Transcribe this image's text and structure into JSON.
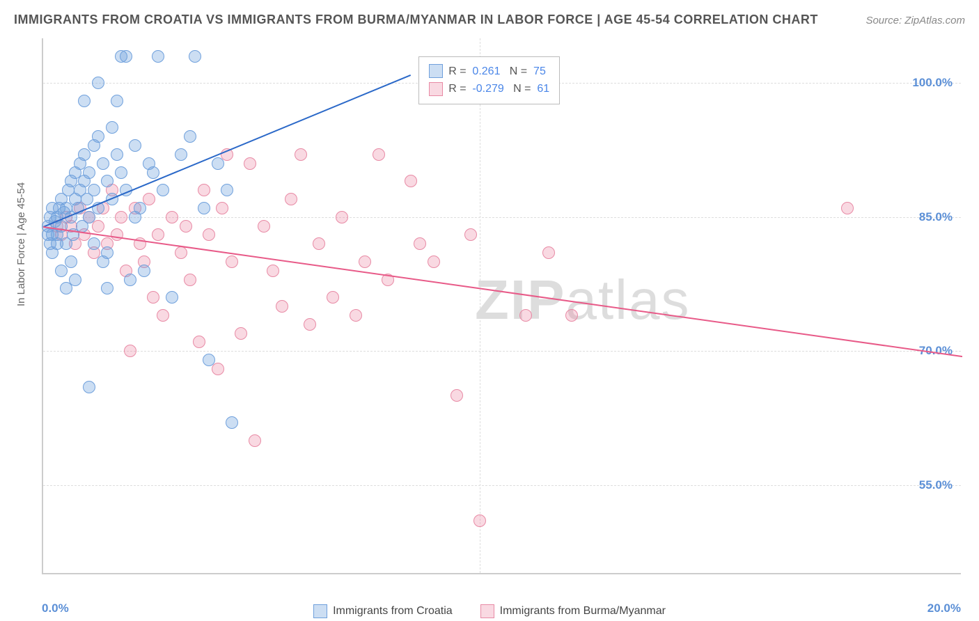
{
  "title": "IMMIGRANTS FROM CROATIA VS IMMIGRANTS FROM BURMA/MYANMAR IN LABOR FORCE | AGE 45-54 CORRELATION CHART",
  "source": "Source: ZipAtlas.com",
  "y_axis_label": "In Labor Force | Age 45-54",
  "watermark_bold": "ZIP",
  "watermark_rest": "atlas",
  "colors": {
    "series_a_fill": "rgba(110,160,220,0.35)",
    "series_a_stroke": "#6fa0dc",
    "series_a_line": "#2a68c8",
    "series_b_fill": "rgba(235,130,160,0.30)",
    "series_b_stroke": "#e88aa5",
    "series_b_line": "#e85a88",
    "tick_label": "#5b8fd6",
    "grid": "#dddddd",
    "axis": "#cccccc",
    "legend_text": "#555555",
    "value_blue": "#4a86e8"
  },
  "plot": {
    "xlim": [
      0,
      20
    ],
    "ylim": [
      45,
      105
    ],
    "y_ticks": [
      55,
      70,
      85,
      100
    ],
    "y_tick_labels": [
      "55.0%",
      "70.0%",
      "85.0%",
      "100.0%"
    ],
    "x_ticks": [
      0,
      20
    ],
    "x_tick_labels": [
      "0.0%",
      "20.0%"
    ],
    "marker_radius": 9,
    "line_width": 2
  },
  "correlation_box": {
    "rows": [
      {
        "swatch": "a",
        "r_label": "R =",
        "r_value": "0.261",
        "n_label": "N =",
        "n_value": "75"
      },
      {
        "swatch": "b",
        "r_label": "R =",
        "r_value": "-0.279",
        "n_label": "N =",
        "n_value": "61"
      }
    ]
  },
  "bottom_legend": [
    {
      "swatch": "a",
      "label": "Immigrants from Croatia"
    },
    {
      "swatch": "b",
      "label": "Immigrants from Burma/Myanmar"
    }
  ],
  "series_a_trend": {
    "x1": 0,
    "y1": 84,
    "x2": 8.0,
    "y2": 101
  },
  "series_b_trend": {
    "x1": 0,
    "y1": 84,
    "x2": 20,
    "y2": 69.5
  },
  "series_a_points": [
    [
      0.1,
      84
    ],
    [
      0.15,
      85
    ],
    [
      0.2,
      86
    ],
    [
      0.2,
      83
    ],
    [
      0.25,
      84.5
    ],
    [
      0.3,
      85
    ],
    [
      0.3,
      83
    ],
    [
      0.35,
      86
    ],
    [
      0.4,
      84
    ],
    [
      0.4,
      87
    ],
    [
      0.45,
      85.5
    ],
    [
      0.5,
      86
    ],
    [
      0.5,
      82
    ],
    [
      0.55,
      88
    ],
    [
      0.6,
      85
    ],
    [
      0.6,
      89
    ],
    [
      0.65,
      83
    ],
    [
      0.7,
      87
    ],
    [
      0.7,
      90
    ],
    [
      0.75,
      86
    ],
    [
      0.8,
      88
    ],
    [
      0.8,
      91
    ],
    [
      0.85,
      84
    ],
    [
      0.9,
      89
    ],
    [
      0.9,
      92
    ],
    [
      0.95,
      87
    ],
    [
      1.0,
      90
    ],
    [
      1.0,
      85
    ],
    [
      1.1,
      93
    ],
    [
      1.1,
      88
    ],
    [
      1.2,
      86
    ],
    [
      1.2,
      94
    ],
    [
      1.3,
      80
    ],
    [
      1.3,
      91
    ],
    [
      1.4,
      89
    ],
    [
      1.4,
      77
    ],
    [
      1.5,
      95
    ],
    [
      1.5,
      87
    ],
    [
      1.6,
      92
    ],
    [
      1.7,
      90
    ],
    [
      1.7,
      103
    ],
    [
      1.8,
      88
    ],
    [
      1.8,
      103
    ],
    [
      1.9,
      78
    ],
    [
      2.0,
      93
    ],
    [
      2.1,
      86
    ],
    [
      2.2,
      79
    ],
    [
      2.3,
      91
    ],
    [
      2.5,
      103
    ],
    [
      2.6,
      88
    ],
    [
      2.8,
      76
    ],
    [
      3.0,
      92
    ],
    [
      3.2,
      94
    ],
    [
      3.3,
      103
    ],
    [
      3.5,
      86
    ],
    [
      3.6,
      69
    ],
    [
      3.8,
      91
    ],
    [
      4.0,
      88
    ],
    [
      4.1,
      62
    ],
    [
      1.6,
      98
    ],
    [
      1.0,
      66
    ],
    [
      1.2,
      100
    ],
    [
      0.9,
      98
    ],
    [
      1.4,
      81
    ],
    [
      0.6,
      80
    ],
    [
      0.3,
      82
    ],
    [
      0.2,
      81
    ],
    [
      2.0,
      85
    ],
    [
      2.4,
      90
    ],
    [
      1.1,
      82
    ],
    [
      0.7,
      78
    ],
    [
      0.5,
      77
    ],
    [
      0.4,
      79
    ],
    [
      0.15,
      82
    ],
    [
      0.1,
      83
    ]
  ],
  "series_b_points": [
    [
      0.3,
      84
    ],
    [
      0.4,
      83
    ],
    [
      0.5,
      85
    ],
    [
      0.6,
      84
    ],
    [
      0.7,
      82
    ],
    [
      0.8,
      86
    ],
    [
      0.9,
      83
    ],
    [
      1.0,
      85
    ],
    [
      1.1,
      81
    ],
    [
      1.2,
      84
    ],
    [
      1.3,
      86
    ],
    [
      1.4,
      82
    ],
    [
      1.5,
      88
    ],
    [
      1.6,
      83
    ],
    [
      1.7,
      85
    ],
    [
      1.8,
      79
    ],
    [
      2.0,
      86
    ],
    [
      2.1,
      82
    ],
    [
      2.2,
      80
    ],
    [
      2.3,
      87
    ],
    [
      2.5,
      83
    ],
    [
      2.6,
      74
    ],
    [
      2.8,
      85
    ],
    [
      3.0,
      81
    ],
    [
      3.2,
      78
    ],
    [
      3.4,
      71
    ],
    [
      3.5,
      88
    ],
    [
      3.6,
      83
    ],
    [
      3.8,
      68
    ],
    [
      4.0,
      92
    ],
    [
      4.1,
      80
    ],
    [
      4.3,
      72
    ],
    [
      4.5,
      91
    ],
    [
      4.6,
      60
    ],
    [
      4.8,
      84
    ],
    [
      5.0,
      79
    ],
    [
      5.2,
      75
    ],
    [
      5.4,
      87
    ],
    [
      5.6,
      92
    ],
    [
      5.8,
      73
    ],
    [
      6.0,
      82
    ],
    [
      6.3,
      76
    ],
    [
      6.5,
      85
    ],
    [
      6.8,
      74
    ],
    [
      7.0,
      80
    ],
    [
      7.3,
      92
    ],
    [
      7.5,
      78
    ],
    [
      8.0,
      89
    ],
    [
      8.2,
      82
    ],
    [
      8.5,
      80
    ],
    [
      9.0,
      65
    ],
    [
      9.3,
      83
    ],
    [
      9.5,
      51
    ],
    [
      10.5,
      74
    ],
    [
      11.0,
      81
    ],
    [
      11.5,
      74
    ],
    [
      1.9,
      70
    ],
    [
      2.4,
      76
    ],
    [
      3.1,
      84
    ],
    [
      3.9,
      86
    ],
    [
      17.5,
      86
    ]
  ]
}
